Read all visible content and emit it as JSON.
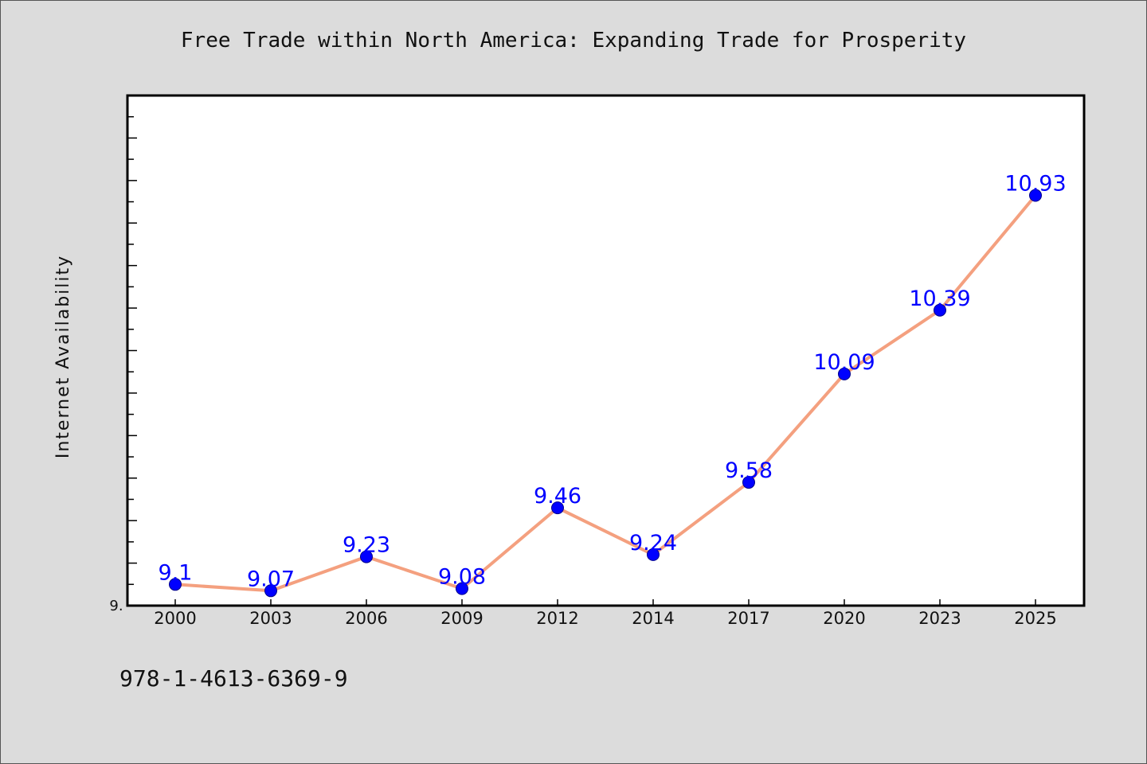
{
  "footer": {
    "code": "978-1-4613-6369-9"
  },
  "colors": {
    "background": "#dcdcdc",
    "line": "#f4a07f",
    "marker": "#0000ff",
    "label": "#0000ff",
    "axis": "#000000"
  },
  "chart_data": {
    "type": "line",
    "title": "Free Trade within North America: Expanding Trade for Prosperity",
    "xlabel": "",
    "ylabel": "Internet Availability",
    "categories": [
      "2000",
      "2003",
      "2006",
      "2009",
      "2012",
      "2014",
      "2017",
      "2020",
      "2023",
      "2025"
    ],
    "series": [
      {
        "values": [
          9.1,
          9.07,
          9.23,
          9.08,
          9.46,
          9.24,
          9.58,
          10.09,
          10.39,
          10.93
        ],
        "labels": [
          "9.1",
          "9.07",
          "9.23",
          "9.08",
          "9.46",
          "9.24",
          "9.58",
          "10.09",
          "10.39",
          "10.93"
        ]
      }
    ],
    "ylim": [
      9.0,
      11.4
    ],
    "ytick_labels": [
      "9."
    ],
    "grid": false,
    "legend": "none"
  }
}
